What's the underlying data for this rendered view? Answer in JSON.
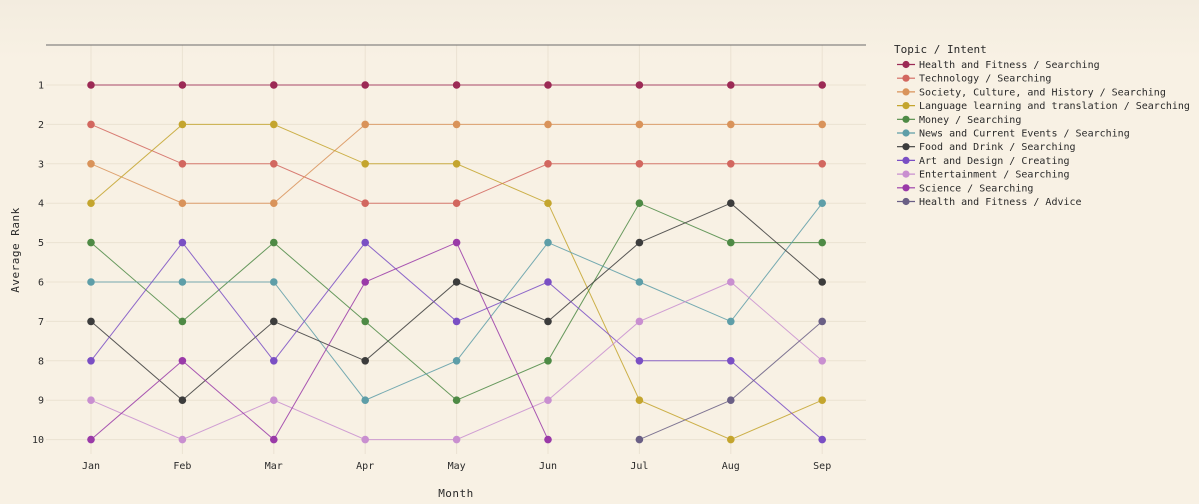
{
  "chart_data": {
    "type": "line",
    "title": "",
    "xlabel": "Month",
    "ylabel": "Average Rank",
    "x": [
      "Jan",
      "Feb",
      "Mar",
      "Apr",
      "May",
      "Jun",
      "Jul",
      "Aug",
      "Sep"
    ],
    "y_ticks": [
      "1",
      "2",
      "3",
      "4",
      "5",
      "6",
      "7",
      "8",
      "9",
      "10"
    ],
    "ylim": [
      10.5,
      0
    ],
    "y_reversed": true,
    "grid": true,
    "legend_title": "Topic / Intent",
    "legend_position": "right",
    "series": [
      {
        "name": "Health and Fitness / Searching",
        "color": "#9c2a55",
        "values": [
          1,
          1,
          1,
          1,
          1,
          1,
          1,
          1,
          1
        ]
      },
      {
        "name": "Technology / Searching",
        "color": "#d2675f",
        "values": [
          2,
          3,
          3,
          4,
          4,
          3,
          3,
          3,
          3
        ]
      },
      {
        "name": "Society, Culture, and History / Searching",
        "color": "#d9935a",
        "values": [
          3,
          4,
          4,
          2,
          2,
          2,
          2,
          2,
          2
        ]
      },
      {
        "name": "Language learning and translation / Searching",
        "color": "#c4a52e",
        "values": [
          4,
          2,
          2,
          3,
          3,
          4,
          9,
          10,
          9
        ]
      },
      {
        "name": "Money / Searching",
        "color": "#4e8a45",
        "values": [
          5,
          7,
          5,
          7,
          9,
          8,
          4,
          5,
          5
        ]
      },
      {
        "name": "News and Current Events / Searching",
        "color": "#5e9ea8",
        "values": [
          6,
          6,
          6,
          9,
          8,
          5,
          6,
          7,
          4
        ]
      },
      {
        "name": "Food and Drink / Searching",
        "color": "#3c3c3c",
        "values": [
          7,
          9,
          7,
          8,
          6,
          7,
          5,
          4,
          6
        ]
      },
      {
        "name": "Art and Design / Creating",
        "color": "#7a4fc4",
        "values": [
          8,
          5,
          8,
          5,
          7,
          6,
          8,
          8,
          10
        ]
      },
      {
        "name": "Entertainment / Searching",
        "color": "#c98fd0",
        "values": [
          9,
          10,
          9,
          10,
          10,
          9,
          7,
          6,
          8
        ]
      },
      {
        "name": "Science / Searching",
        "color": "#9a3aa8",
        "values": [
          10,
          8,
          10,
          6,
          5,
          10,
          null,
          null,
          null
        ]
      },
      {
        "name": "Health and Fitness / Advice",
        "color": "#6a5f85",
        "values": [
          null,
          null,
          null,
          null,
          null,
          null,
          10,
          9,
          7
        ]
      }
    ]
  }
}
